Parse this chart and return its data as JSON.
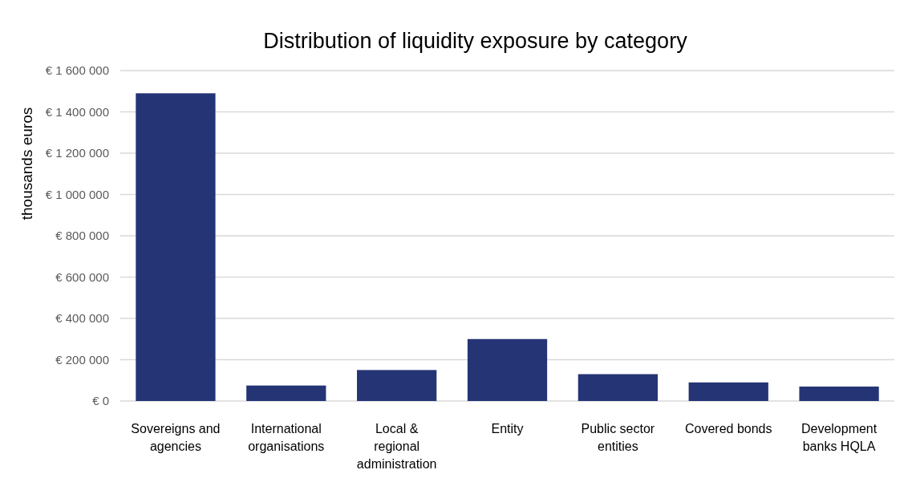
{
  "chart_data": {
    "type": "bar",
    "title": "Distribution of liquidity exposure by category",
    "ylabel": "thousands euros",
    "categories": [
      "Sovereigns and agencies",
      "International organisations",
      "Local & regional administration",
      "Entity",
      "Public sector entities",
      "Covered bonds",
      "Development banks HQLA"
    ],
    "values": [
      1490000,
      75000,
      150000,
      300000,
      130000,
      90000,
      70000
    ],
    "color": "#253474",
    "ylim": [
      0,
      1600000
    ],
    "yticks": [
      {
        "value": 0,
        "label": "€ 0"
      },
      {
        "value": 200000,
        "label": "€ 200 000"
      },
      {
        "value": 400000,
        "label": "€ 400 000"
      },
      {
        "value": 600000,
        "label": "€ 600 000"
      },
      {
        "value": 800000,
        "label": "€ 800 000"
      },
      {
        "value": 1000000,
        "label": "€ 1 000 000"
      },
      {
        "value": 1200000,
        "label": "€ 1 200 000"
      },
      {
        "value": 1400000,
        "label": "€ 1 400 000"
      },
      {
        "value": 1600000,
        "label": "€ 1 600 000"
      }
    ],
    "grid": "y"
  }
}
